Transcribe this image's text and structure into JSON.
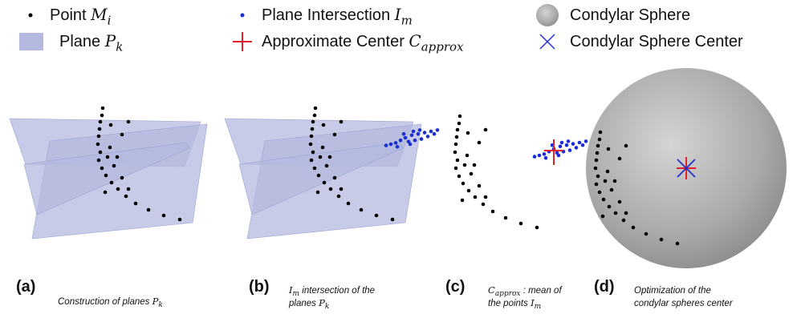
{
  "legend": [
    [
      {
        "text": "Point "
      },
      {
        "math": "M",
        "sub": "i"
      }
    ],
    [
      {
        "text": "Plane "
      },
      {
        "math": "P",
        "sub": "k"
      }
    ],
    [
      {
        "text": "Plane Intersection "
      },
      {
        "math": "I",
        "sub": "m"
      }
    ],
    [
      {
        "text": "Approximate Center "
      },
      {
        "math": "C",
        "sub": "approx"
      }
    ],
    [
      {
        "text": "Condylar Sphere"
      }
    ],
    [
      {
        "text": "Condylar Sphere Center"
      }
    ]
  ],
  "captions": [
    {
      "letter": "(a)",
      "lines": [
        [
          {
            "text": "Construction of planes "
          },
          {
            "math": "P",
            "sub": "k"
          }
        ]
      ]
    },
    {
      "letter": "(b)",
      "lines": [
        [
          {
            "math": "I",
            "sub": "m"
          },
          {
            "text": " intersection of the"
          }
        ],
        [
          {
            "text": "planes "
          },
          {
            "math": "P",
            "sub": "k"
          }
        ]
      ]
    },
    {
      "letter": "(c)",
      "lines": [
        [
          {
            "math": "C",
            "sub": "approx"
          },
          {
            "text": " : mean of"
          }
        ],
        [
          {
            "text": "the points "
          },
          {
            "math": "I",
            "sub": "m"
          }
        ]
      ]
    },
    {
      "letter": "(d)",
      "lines": [
        [
          {
            "text": "Optimization of the"
          }
        ],
        [
          {
            "text": "condylar spheres center"
          }
        ]
      ]
    }
  ]
}
